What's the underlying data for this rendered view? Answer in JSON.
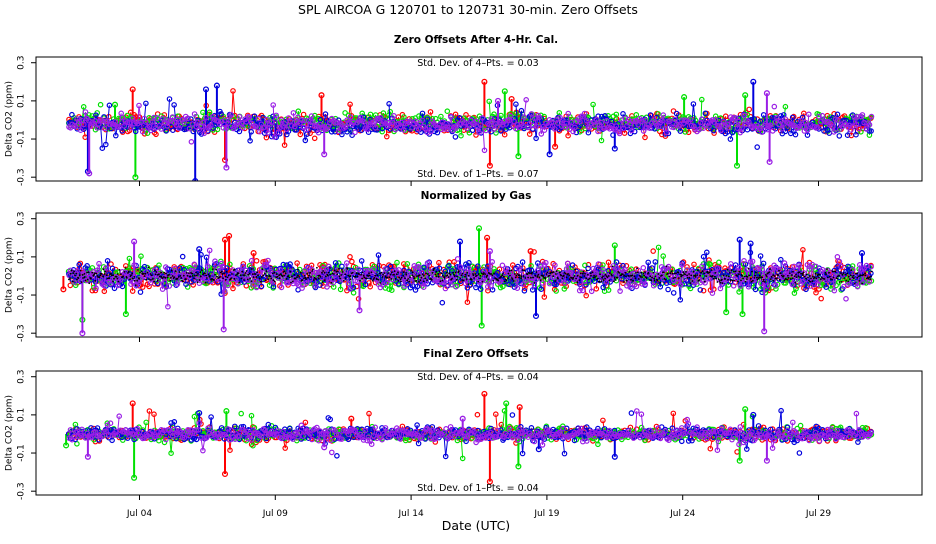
{
  "title": "SPL   AIRCOA G   120701 to 120731   30-min. Zero Offsets",
  "xlabel": "Date (UTC)",
  "colors": {
    "red": "#ff0000",
    "green": "#00e000",
    "blue": "#0000dd",
    "purple": "#9a1ee6",
    "black": "#000000"
  },
  "chart_data": [
    {
      "type": "scatter",
      "title": "Zero Offsets After 4-Hr. Cal.",
      "ylabel": "Delta CO2 (ppm)",
      "ylim": [
        -0.32,
        0.33
      ],
      "yticks": [
        -0.3,
        -0.1,
        0.1,
        0.3
      ],
      "ytick_labels": [
        "-0.3",
        "-0.1",
        "0.1",
        "0.3"
      ],
      "xlim": [
        0,
        31
      ],
      "xticks": [
        3,
        8,
        13,
        18,
        23,
        28
      ],
      "xtick_labels": [
        "Jul 04",
        "Jul 09",
        "Jul 14",
        "Jul 19",
        "Jul 24",
        "Jul 29"
      ],
      "annotation_top": "Std. Dev. of 4–Pts. =  0.03",
      "annotation_bottom": "Std. Dev. of 1–Pts. =  0.07",
      "series": [
        {
          "name": "red",
          "color": "#ff0000",
          "base": -0.02,
          "spread": 0.045,
          "spikes": [
            [
              2.75,
              0.16
            ],
            [
              6.15,
              -0.21
            ],
            [
              15.7,
              0.2
            ],
            [
              15.9,
              -0.24
            ],
            [
              16.7,
              0.11
            ],
            [
              18.3,
              -0.14
            ],
            [
              9.7,
              0.13
            ]
          ]
        },
        {
          "name": "green",
          "color": "#00e000",
          "base": -0.01,
          "spread": 0.04,
          "spikes": [
            [
              2.85,
              -0.3
            ],
            [
              2.1,
              0.08
            ],
            [
              16.45,
              0.15
            ],
            [
              16.95,
              -0.19
            ],
            [
              23.05,
              0.12
            ],
            [
              25.0,
              -0.24
            ],
            [
              25.3,
              0.13
            ]
          ]
        },
        {
          "name": "blue",
          "color": "#0000dd",
          "base": -0.025,
          "spread": 0.045,
          "spikes": [
            [
              1.1,
              -0.27
            ],
            [
              5.05,
              -0.32
            ],
            [
              5.45,
              0.16
            ],
            [
              5.85,
              0.18
            ],
            [
              18.1,
              -0.18
            ],
            [
              25.6,
              0.2
            ],
            [
              20.5,
              -0.15
            ]
          ]
        },
        {
          "name": "purple",
          "color": "#9a1ee6",
          "base": -0.02,
          "spread": 0.04,
          "spikes": [
            [
              1.15,
              -0.28
            ],
            [
              6.2,
              -0.25
            ],
            [
              9.8,
              -0.18
            ],
            [
              16.2,
              0.1
            ],
            [
              26.2,
              -0.22
            ],
            [
              26.1,
              0.14
            ]
          ]
        }
      ]
    },
    {
      "type": "scatter",
      "title": "Normalized by Gas",
      "ylabel": "Delta CO2 (ppm)",
      "ylim": [
        -0.32,
        0.33
      ],
      "yticks": [
        -0.3,
        -0.1,
        0.1,
        0.3
      ],
      "ytick_labels": [
        "-0.3",
        "-0.1",
        "0.1",
        "0.3"
      ],
      "xlim": [
        0,
        31
      ],
      "xticks": [
        3,
        8,
        13,
        18,
        23,
        28
      ],
      "xtick_labels": [
        "Jul 04",
        "Jul 09",
        "Jul 14",
        "Jul 19",
        "Jul 24",
        "Jul 29"
      ],
      "annotation_top": "",
      "annotation_bottom": "",
      "series": [
        {
          "name": "red",
          "color": "#ff0000",
          "base": 0.0,
          "spread": 0.06,
          "spikes": [
            [
              6.3,
              0.21
            ],
            [
              6.15,
              0.19
            ],
            [
              15.8,
              0.2
            ],
            [
              17.4,
              0.13
            ],
            [
              7.2,
              0.12
            ],
            [
              0.2,
              -0.07
            ]
          ]
        },
        {
          "name": "green",
          "color": "#00e000",
          "base": 0.0,
          "spread": 0.06,
          "spikes": [
            [
              15.5,
              0.25
            ],
            [
              15.6,
              -0.26
            ],
            [
              0.9,
              -0.23
            ],
            [
              2.5,
              -0.2
            ],
            [
              20.5,
              0.16
            ],
            [
              24.6,
              -0.19
            ],
            [
              25.2,
              -0.2
            ]
          ]
        },
        {
          "name": "blue",
          "color": "#0000dd",
          "base": 0.0,
          "spread": 0.06,
          "spikes": [
            [
              17.6,
              -0.21
            ],
            [
              25.1,
              0.19
            ],
            [
              25.5,
              0.17
            ],
            [
              29.6,
              0.12
            ],
            [
              14.8,
              0.18
            ],
            [
              5.2,
              0.14
            ]
          ]
        },
        {
          "name": "purple",
          "color": "#9a1ee6",
          "base": 0.0,
          "spread": 0.06,
          "spikes": [
            [
              0.9,
              -0.3
            ],
            [
              2.8,
              0.18
            ],
            [
              6.1,
              -0.28
            ],
            [
              26.0,
              -0.29
            ],
            [
              11.1,
              -0.18
            ],
            [
              15.9,
              0.13
            ]
          ]
        },
        {
          "name": "black",
          "color": "#000000",
          "base": 0.0,
          "spread": 0.03,
          "spikes": []
        }
      ]
    },
    {
      "type": "scatter",
      "title": "Final Zero Offsets",
      "ylabel": "Delta CO2 (ppm)",
      "ylim": [
        -0.32,
        0.33
      ],
      "yticks": [
        -0.3,
        -0.1,
        0.1,
        0.3
      ],
      "ytick_labels": [
        "-0.3",
        "-0.1",
        "0.1",
        "0.3"
      ],
      "xlim": [
        0,
        31
      ],
      "xticks": [
        3,
        8,
        13,
        18,
        23,
        28
      ],
      "xtick_labels": [
        "Jul 04",
        "Jul 09",
        "Jul 14",
        "Jul 19",
        "Jul 24",
        "Jul 29"
      ],
      "annotation_top": "Std. Dev. of 4–Pts. =  0.04",
      "annotation_bottom": "Std. Dev. of 1–Pts. =  0.04",
      "series": [
        {
          "name": "red",
          "color": "#ff0000",
          "base": 0.0,
          "spread": 0.03,
          "spikes": [
            [
              2.75,
              0.16
            ],
            [
              6.15,
              -0.21
            ],
            [
              15.7,
              0.21
            ],
            [
              15.9,
              -0.25
            ],
            [
              17.0,
              0.14
            ],
            [
              10.8,
              0.08
            ]
          ]
        },
        {
          "name": "green",
          "color": "#00e000",
          "base": 0.0,
          "spread": 0.03,
          "spikes": [
            [
              2.8,
              -0.23
            ],
            [
              6.2,
              0.12
            ],
            [
              16.5,
              0.16
            ],
            [
              16.95,
              -0.17
            ],
            [
              25.1,
              -0.14
            ],
            [
              25.3,
              0.13
            ],
            [
              0.3,
              -0.06
            ]
          ]
        },
        {
          "name": "blue",
          "color": "#0000dd",
          "base": 0.0,
          "spread": 0.03,
          "spikes": [
            [
              5.2,
              0.11
            ],
            [
              17.7,
              -0.08
            ],
            [
              20.5,
              -0.12
            ],
            [
              25.6,
              0.1
            ]
          ]
        },
        {
          "name": "purple",
          "color": "#9a1ee6",
          "base": 0.0,
          "spread": 0.03,
          "spikes": [
            [
              1.1,
              -0.12
            ],
            [
              26.1,
              -0.14
            ],
            [
              9.8,
              -0.07
            ],
            [
              14.9,
              0.08
            ]
          ]
        }
      ]
    }
  ]
}
